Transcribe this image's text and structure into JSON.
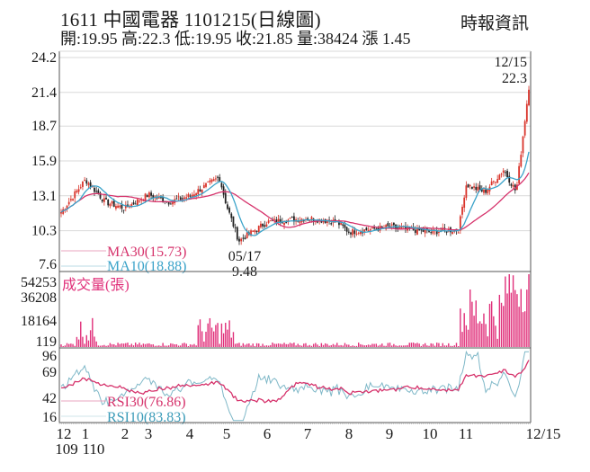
{
  "header": {
    "title": "1611  中國電器 1101215(日線圖)",
    "quote": "開:19.95 高:22.3 低:19.95 收:21.85 量:38424 漲 1.45",
    "source": "時報資訊"
  },
  "colors": {
    "up": "#d9342b",
    "down": "#222222",
    "ma30": "#d6336c",
    "ma10": "#3ba3c9",
    "volume": "#e0307a",
    "rsi30": "#d6336c",
    "rsi10": "#7fb8c8",
    "grid": "#d9d9d9",
    "axis": "#555555"
  },
  "chart_data": [
    {
      "type": "candlestick",
      "title": "1611 中國電器 1101215(日線圖)",
      "panel": "price",
      "y_ticks": [
        24.2,
        21.4,
        18.7,
        15.9,
        13.1,
        10.3,
        7.6
      ],
      "ylim": [
        7.6,
        24.2
      ],
      "grid": true,
      "annotations": [
        {
          "label": "12/15",
          "value": "22.3",
          "note": "period high"
        },
        {
          "label": "05/17",
          "value": "9.48",
          "note": "period low"
        }
      ],
      "legend": [
        {
          "name": "MA30",
          "value": "15.73"
        },
        {
          "name": "MA10",
          "value": "18.88"
        }
      ],
      "x_months": [
        "12",
        "1",
        "2",
        "3",
        "4",
        "5",
        "6",
        "7",
        "8",
        "9",
        "10",
        "11",
        "12/15"
      ],
      "x_years": [
        "109",
        "110"
      ],
      "close_path_approx": [
        {
          "m": "12",
          "v": 11.6
        },
        {
          "m": "1",
          "v": 14.4
        },
        {
          "m": "1.5",
          "v": 12.6
        },
        {
          "m": "2",
          "v": 12.1
        },
        {
          "m": "3",
          "v": 13.2
        },
        {
          "m": "3.5",
          "v": 12.6
        },
        {
          "m": "4",
          "v": 13.1
        },
        {
          "m": "4.8",
          "v": 14.6
        },
        {
          "m": "5",
          "v": 12.3
        },
        {
          "m": "5.3",
          "v": 9.48
        },
        {
          "m": "6",
          "v": 11.0
        },
        {
          "m": "7",
          "v": 11.3
        },
        {
          "m": "7.7",
          "v": 11.0
        },
        {
          "m": "8",
          "v": 10.2
        },
        {
          "m": "9",
          "v": 10.6
        },
        {
          "m": "10",
          "v": 10.2
        },
        {
          "m": "10.8",
          "v": 10.4
        },
        {
          "m": "11",
          "v": 14.0
        },
        {
          "m": "11.3",
          "v": 13.4
        },
        {
          "m": "11.6",
          "v": 15.2
        },
        {
          "m": "11.8",
          "v": 13.4
        },
        {
          "m": "12/15",
          "v": 21.85
        }
      ],
      "ma30_end": 15.73,
      "ma10_end": 18.88
    },
    {
      "type": "bar",
      "panel": "volume",
      "title": "成交量(張)",
      "y_ticks": [
        54253,
        36208,
        18164,
        119
      ],
      "ylim": [
        119,
        54253
      ],
      "max_value": 54253
    },
    {
      "type": "line",
      "panel": "rsi",
      "y_ticks": [
        96,
        69,
        42,
        16
      ],
      "legend": [
        {
          "name": "RSI30",
          "value": "76.86"
        },
        {
          "name": "RSI10",
          "value": "83.83"
        }
      ]
    }
  ],
  "price_panel": {
    "yticks": [
      "24.2",
      "21.4",
      "18.7",
      "15.9",
      "13.1",
      "10.3",
      "7.6"
    ],
    "high_date": "12/15",
    "high_value": "22.3",
    "low_date": "05/17",
    "low_value": "9.48",
    "ma30_label": "MA30(15.73)",
    "ma10_label": "MA10(18.88)"
  },
  "volume_panel": {
    "label": "成交量(張)",
    "yticks": [
      "54253",
      "36208",
      "18164",
      "119"
    ]
  },
  "rsi_panel": {
    "yticks": [
      "96",
      "69",
      "42",
      "16"
    ],
    "rsi30_label": "RSI30(76.86)",
    "rsi10_label": "RSI10(83.83)"
  },
  "xaxis": {
    "months": [
      "12",
      "1",
      "2",
      "3",
      "4",
      "5",
      "6",
      "7",
      "8",
      "9",
      "10",
      "11",
      "12/15"
    ],
    "years": [
      "109",
      "110"
    ]
  }
}
